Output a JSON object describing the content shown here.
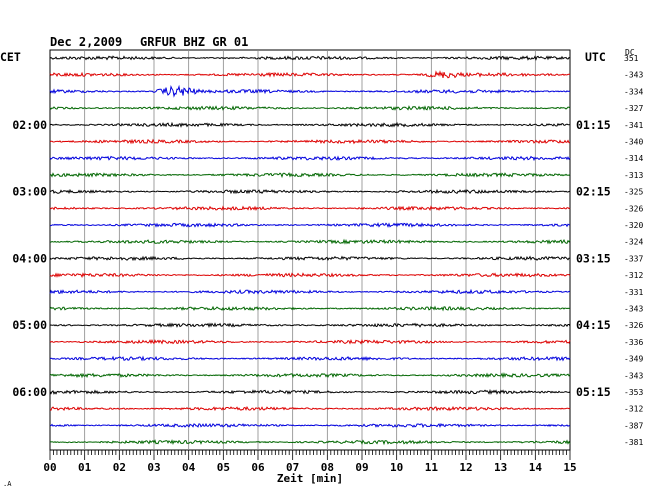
{
  "header": {
    "date": "Dec 2,2009",
    "station": "GRFUR BHZ GR 01",
    "left_zone": "CET",
    "right_zone": "UTC",
    "dc_label": "DC"
  },
  "chart_data": {
    "type": "line",
    "title": "Dec 2,2009   GRFUR BHZ GR 01",
    "xlabel": "Zeit [min]",
    "ylabel": "",
    "xlim": [
      0,
      15
    ],
    "x_ticks": [
      "00",
      "01",
      "02",
      "03",
      "04",
      "05",
      "06",
      "07",
      "08",
      "09",
      "10",
      "11",
      "12",
      "13",
      "14",
      "15"
    ],
    "grid": true,
    "trace_colors": [
      "#000000",
      "#dd0000",
      "#0000dd",
      "#006600"
    ],
    "left_time_labels": [
      {
        "row": 4,
        "text": "02:00"
      },
      {
        "row": 8,
        "text": "03:00"
      },
      {
        "row": 12,
        "text": "04:00"
      },
      {
        "row": 16,
        "text": "05:00"
      },
      {
        "row": 20,
        "text": "06:00"
      }
    ],
    "right_time_labels": [
      {
        "row": 4,
        "text": "01:15"
      },
      {
        "row": 8,
        "text": "02:15"
      },
      {
        "row": 12,
        "text": "03:15"
      },
      {
        "row": 16,
        "text": "04:15"
      },
      {
        "row": 20,
        "text": "05:15"
      }
    ],
    "dc_offsets": [
      "351",
      "-343",
      "-334",
      "-327",
      "-341",
      "-340",
      "-314",
      "-313",
      "-325",
      "-326",
      "-320",
      "-324",
      "-337",
      "-312",
      "-331",
      "-343",
      "-326",
      "-336",
      "-349",
      "-343",
      "-353",
      "-312",
      "-387",
      "-381"
    ],
    "events": [
      {
        "row": 1,
        "minute_start": 10.8,
        "minute_end": 12.0,
        "amplitude": 2.6
      },
      {
        "row": 2,
        "minute_start": 3.0,
        "minute_end": 4.4,
        "amplitude": 4.2
      }
    ]
  },
  "footer": {
    "corner_mark": ".A"
  }
}
